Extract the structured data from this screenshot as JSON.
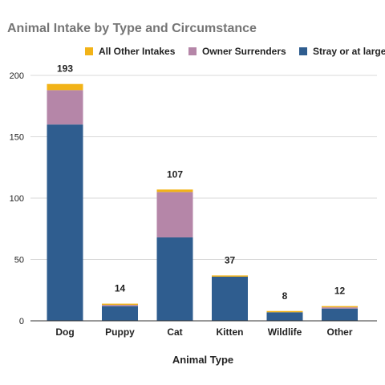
{
  "chart_data": {
    "type": "bar",
    "stacked": true,
    "title": "Animal Intake by Type and Circumstance",
    "xlabel": "Animal Type",
    "ylabel": "",
    "ylim": [
      0,
      200
    ],
    "yticks": [
      0,
      50,
      100,
      150,
      200
    ],
    "grid": true,
    "legend": "top-right",
    "categories": [
      "Dog",
      "Puppy",
      "Cat",
      "Kitten",
      "Wildlife",
      "Other"
    ],
    "totals": [
      193,
      14,
      107,
      37,
      8,
      12
    ],
    "series": [
      {
        "name": "Stray or at large",
        "color": "#2f5d8f",
        "values": [
          160,
          12,
          68,
          36,
          7,
          10
        ]
      },
      {
        "name": "Owner Surrenders",
        "color": "#b586a8",
        "values": [
          28,
          1,
          37,
          0,
          0,
          1
        ]
      },
      {
        "name": "All Other Intakes",
        "color": "#f2b318",
        "values": [
          5,
          1,
          2,
          1,
          1,
          1
        ]
      }
    ],
    "legend_order": [
      2,
      1,
      0
    ]
  }
}
